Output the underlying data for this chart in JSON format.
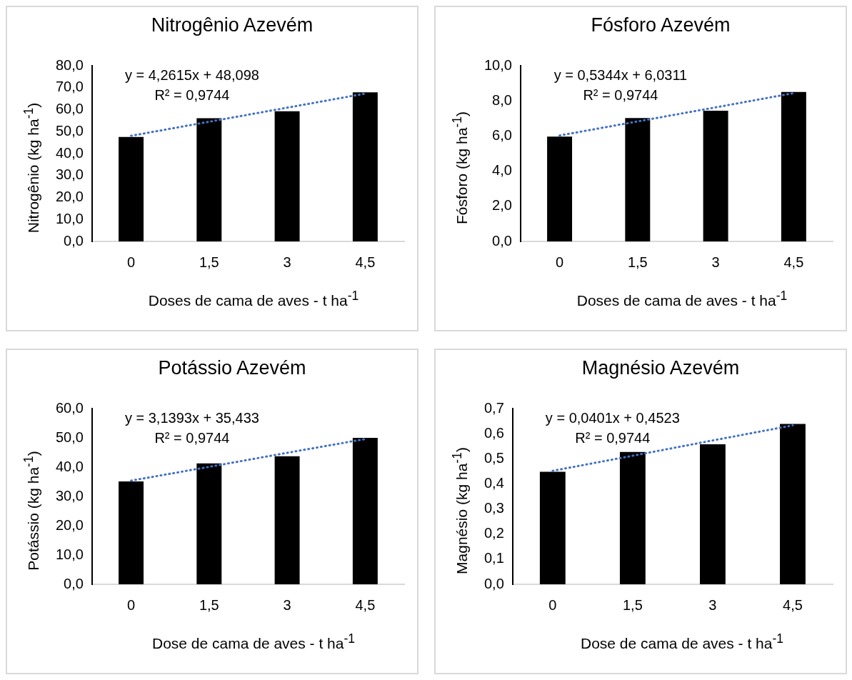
{
  "chart_data": [
    {
      "type": "bar",
      "title": "Nitrogênio Azevém",
      "xlabel": "Doses de cama de aves - t ha$^{-1}$",
      "ylabel": "Nitrogênio (kg ha$^{-1}$)",
      "categories": [
        "0",
        "1,5",
        "3",
        "4,5"
      ],
      "series": [
        {
          "values": [
            47.6,
            56.1,
            59.3,
            67.9
          ],
          "color": "#000000"
        },
        {
          "type": "line",
          "values": [
            48.1,
            54.5,
            60.9,
            67.3
          ],
          "color": "#4472c4",
          "line_style": "dotted",
          "marker": "none"
        }
      ],
      "ylim": [
        0,
        80
      ],
      "yticks": [
        {
          "value": 0,
          "label": "0,0"
        },
        {
          "value": 10,
          "label": "10,0"
        },
        {
          "value": 20,
          "label": "20,0"
        },
        {
          "value": 30,
          "label": "30,0"
        },
        {
          "value": 40,
          "label": "40,0"
        },
        {
          "value": 50,
          "label": "50,0"
        },
        {
          "value": 60,
          "label": "60,0"
        },
        {
          "value": 70,
          "label": "70,0"
        },
        {
          "value": 80,
          "label": "80,0"
        }
      ],
      "annotations": [
        "y = 4,2615x + 48,098",
        "R² = 0,9744"
      ]
    },
    {
      "type": "bar",
      "title": "Fósforo Azevém",
      "xlabel": "Doses de cama de aves - t ha$^{-1}$",
      "ylabel": "Fósforo (kg ha$^{-1}$)",
      "categories": [
        "0",
        "1,5",
        "3",
        "4,5"
      ],
      "series": [
        {
          "values": [
            5.97,
            7.02,
            7.44,
            8.51
          ],
          "color": "#000000"
        },
        {
          "type": "line",
          "values": [
            6.03,
            6.83,
            7.63,
            8.44
          ],
          "color": "#4472c4",
          "line_style": "dotted",
          "marker": "none"
        }
      ],
      "ylim": [
        0,
        10
      ],
      "yticks": [
        {
          "value": 0,
          "label": "0,0"
        },
        {
          "value": 2,
          "label": "2,0"
        },
        {
          "value": 4,
          "label": "4,0"
        },
        {
          "value": 6,
          "label": "6,0"
        },
        {
          "value": 8,
          "label": "8,0"
        },
        {
          "value": 10,
          "label": "10,0"
        }
      ],
      "annotations": [
        "y = 0,5344x + 6,0311",
        "R² = 0,9744"
      ]
    },
    {
      "type": "bar",
      "title": "Potássio Azevém",
      "xlabel": "Dose de cama de aves - t ha$^{-1}$",
      "ylabel": "Potássio (kg ha$^{-1}$)",
      "categories": [
        "0",
        "1,5",
        "3",
        "4,5"
      ],
      "series": [
        {
          "values": [
            35.1,
            41.3,
            43.7,
            50.0
          ],
          "color": "#000000"
        },
        {
          "type": "line",
          "values": [
            35.4,
            40.1,
            44.9,
            49.6
          ],
          "color": "#4472c4",
          "line_style": "dotted",
          "marker": "none"
        }
      ],
      "ylim": [
        0,
        60
      ],
      "yticks": [
        {
          "value": 0,
          "label": "0,0"
        },
        {
          "value": 10,
          "label": "10,0"
        },
        {
          "value": 20,
          "label": "20,0"
        },
        {
          "value": 30,
          "label": "30,0"
        },
        {
          "value": 40,
          "label": "40,0"
        },
        {
          "value": 50,
          "label": "50,0"
        },
        {
          "value": 60,
          "label": "60,0"
        }
      ],
      "annotations": [
        "y = 3,1393x + 35,433",
        "R² = 0,9744"
      ]
    },
    {
      "type": "bar",
      "title": "Magnésio Azevém",
      "xlabel": "Dose de cama de aves - t ha$^{-1}$",
      "ylabel": "Magnésio (kg ha$^{-1}$)",
      "categories": [
        "0",
        "1,5",
        "3",
        "4,5"
      ],
      "series": [
        {
          "values": [
            0.448,
            0.527,
            0.558,
            0.639
          ],
          "color": "#000000"
        },
        {
          "type": "line",
          "values": [
            0.452,
            0.512,
            0.573,
            0.633
          ],
          "color": "#4472c4",
          "line_style": "dotted",
          "marker": "none"
        }
      ],
      "ylim": [
        0,
        0.7
      ],
      "yticks": [
        {
          "value": 0,
          "label": "0,0"
        },
        {
          "value": 0.1,
          "label": "0,1"
        },
        {
          "value": 0.2,
          "label": "0,2"
        },
        {
          "value": 0.3,
          "label": "0,3"
        },
        {
          "value": 0.4,
          "label": "0,4"
        },
        {
          "value": 0.5,
          "label": "0,5"
        },
        {
          "value": 0.6,
          "label": "0,6"
        },
        {
          "value": 0.7,
          "label": "0,7"
        }
      ],
      "annotations": [
        "y = 0,0401x + 0,4523",
        "R² = 0,9744"
      ]
    }
  ]
}
